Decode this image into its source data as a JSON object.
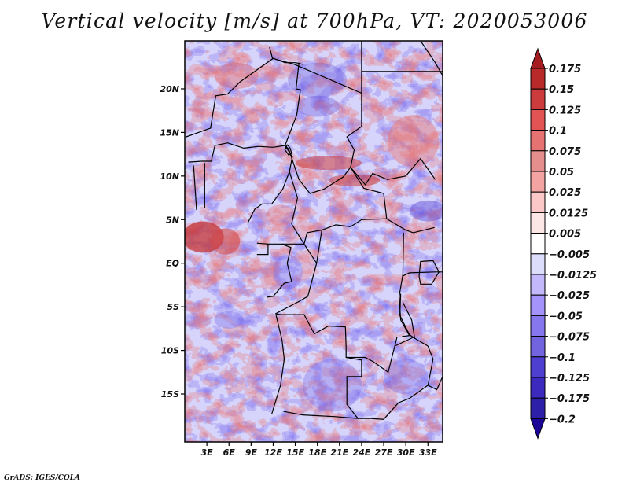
{
  "chart_data": {
    "type": "heatmap",
    "title": "Vertical velocity [m/s] at 700hPa, VT: 2020053006",
    "variable": "Vertical velocity",
    "units": "m/s",
    "level": "700hPa",
    "valid_time": "2020053006",
    "map_projection": "latlon",
    "region": "Central Africa",
    "x_range": [
      0,
      35
    ],
    "y_range": [
      -20.5,
      25.5
    ],
    "x_ticks": [
      3,
      6,
      9,
      12,
      15,
      18,
      21,
      24,
      27,
      30,
      33
    ],
    "x_tick_labels": [
      "3E",
      "6E",
      "9E",
      "12E",
      "15E",
      "18E",
      "21E",
      "24E",
      "27E",
      "30E",
      "33E"
    ],
    "y_ticks": [
      20,
      15,
      10,
      5,
      0,
      -5,
      -10,
      -15
    ],
    "y_tick_labels": [
      "20N",
      "15N",
      "10N",
      "5N",
      "EQ",
      "5S",
      "10S",
      "15S"
    ],
    "grid": false,
    "colorbar": {
      "placement": "right",
      "orientation": "vertical",
      "levels": [
        0.175,
        0.15,
        0.125,
        0.1,
        0.075,
        0.05,
        0.025,
        0.0125,
        0.005,
        -0.005,
        -0.0125,
        -0.025,
        -0.05,
        -0.075,
        -0.1,
        -0.125,
        -0.175,
        -0.2
      ],
      "labels": [
        "0.175",
        "0.15",
        "0.125",
        "0.1",
        "0.075",
        "0.05",
        "0.025",
        "0.0125",
        "0.005",
        "−0.005",
        "−0.0125",
        "−0.025",
        "−0.05",
        "−0.075",
        "−0.1",
        "−0.125",
        "−0.175",
        "−0.2"
      ],
      "colors": [
        "#a51d20",
        "#b8292a",
        "#cc3c3c",
        "#e25353",
        "#e77272",
        "#e48e8e",
        "#f4a3a3",
        "#fbc7c7",
        "#fde6e6",
        "#ffffff",
        "#dcdcfb",
        "#c2b8fa",
        "#a393fb",
        "#8777ef",
        "#7263de",
        "#4e3fd0",
        "#3c29bd",
        "#2e1fa8",
        "#1c0596"
      ],
      "extend": "both"
    },
    "field_summary": "Noisy alternating weak updrafts (red) and downdrafts (blue) mostly within ±0.05 m/s; strongest ascent (>0.1 m/s) near Gulf of Guinea coast around 0-5E, 2-4N and along a NW-SE line across northern Central African Republic near 10N; strong descent patches scattered over Chad/Niger and Sudan."
  },
  "credit": "GrADS: IGES/COLA"
}
